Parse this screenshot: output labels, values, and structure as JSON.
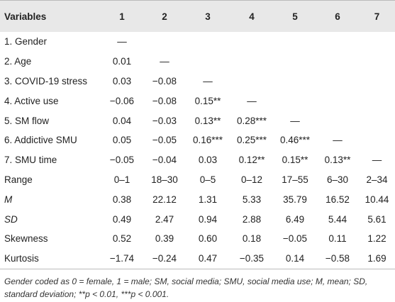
{
  "table": {
    "header": [
      "Variables",
      "1",
      "2",
      "3",
      "4",
      "5",
      "6",
      "7"
    ],
    "rows": [
      [
        "1. Gender",
        "—"
      ],
      [
        "2. Age",
        "0.01",
        "—"
      ],
      [
        "3. COVID-19 stress",
        "0.03",
        "−0.08",
        "—"
      ],
      [
        "4. Active use",
        "−0.06",
        "−0.08",
        "0.15**",
        "—"
      ],
      [
        "5. SM flow",
        "0.04",
        "−0.03",
        "0.13**",
        "0.28***",
        "—"
      ],
      [
        "6. Addictive SMU",
        "0.05",
        "−0.05",
        "0.16***",
        "0.25***",
        "0.46***",
        "—"
      ],
      [
        "7. SMU time",
        "−0.05",
        "−0.04",
        "0.03",
        "0.12**",
        "0.15**",
        "0.13**",
        "—"
      ],
      [
        "Range",
        "0–1",
        "18–30",
        "0–5",
        "0–12",
        "17–55",
        "6–30",
        "2–34"
      ],
      [
        "M",
        "0.38",
        "22.12",
        "1.31",
        "5.33",
        "35.79",
        "16.52",
        "10.44"
      ],
      [
        "SD",
        "0.49",
        "2.47",
        "0.94",
        "2.88",
        "6.49",
        "5.44",
        "5.61"
      ],
      [
        "Skewness",
        "0.52",
        "0.39",
        "0.60",
        "0.18",
        "−0.05",
        "0.11",
        "1.22"
      ],
      [
        "Kurtosis",
        "−1.74",
        "−0.24",
        "0.47",
        "−0.35",
        "0.14",
        "−0.58",
        "1.69"
      ]
    ],
    "footnote": "Gender coded as 0 = female, 1 = male; SM, social media; SMU, social media use; M, mean; SD, standard deviation; **p < 0.01, ***p < 0.001."
  }
}
